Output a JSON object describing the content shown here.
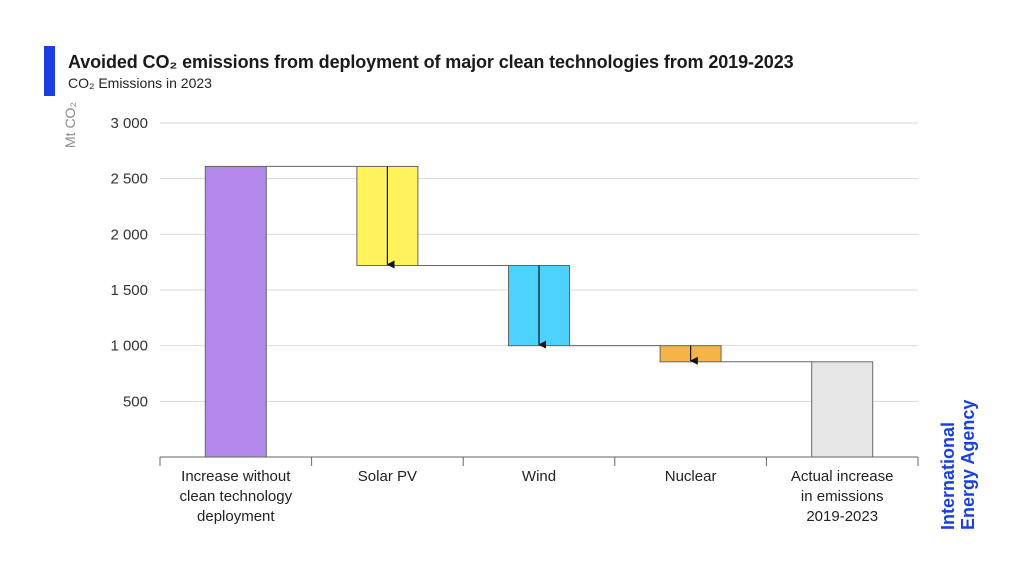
{
  "header": {
    "title": "Avoided CO₂ emissions from deployment of major clean technologies from 2019-2023",
    "subtitle": "CO₂ Emissions in 2023"
  },
  "logo": {
    "line1": "International",
    "line2": "Energy Agency"
  },
  "colors": {
    "accent": "#1a3fe0",
    "increase": "#b388eb",
    "solar": "#fff25c",
    "wind": "#4dd2ff",
    "nuclear": "#f6b446",
    "actual": "#e6e6e6"
  },
  "chart_data": {
    "type": "waterfall",
    "title": "Avoided CO₂ emissions from deployment of major clean technologies from 2019-2023",
    "subtitle": "CO₂ Emissions in 2023",
    "ylabel": "Mt CO₂",
    "ylim": [
      0,
      3000
    ],
    "yticks": [
      500,
      1000,
      1500,
      2000,
      2500,
      3000
    ],
    "ytick_labels": [
      "500",
      "1 000",
      "1 500",
      "2 000",
      "2 500",
      "3 000"
    ],
    "grid": true,
    "categories": [
      "Increase without clean technology deployment",
      "Solar PV",
      "Wind",
      "Nuclear",
      "Actual increase in emissions 2019-2023"
    ],
    "bars": [
      {
        "label": "Increase without clean technology deployment",
        "start": 0,
        "end": 2610,
        "kind": "total",
        "color": "#b388eb"
      },
      {
        "label": "Solar PV",
        "start": 2610,
        "end": 1720,
        "kind": "decrease",
        "color": "#fff25c"
      },
      {
        "label": "Wind",
        "start": 1720,
        "end": 1000,
        "kind": "decrease",
        "color": "#4dd2ff"
      },
      {
        "label": "Nuclear",
        "start": 1000,
        "end": 855,
        "kind": "decrease",
        "color": "#f6b446"
      },
      {
        "label": "Actual increase in emissions 2019-2023",
        "start": 0,
        "end": 855,
        "kind": "total",
        "color": "#e6e6e6"
      }
    ]
  }
}
